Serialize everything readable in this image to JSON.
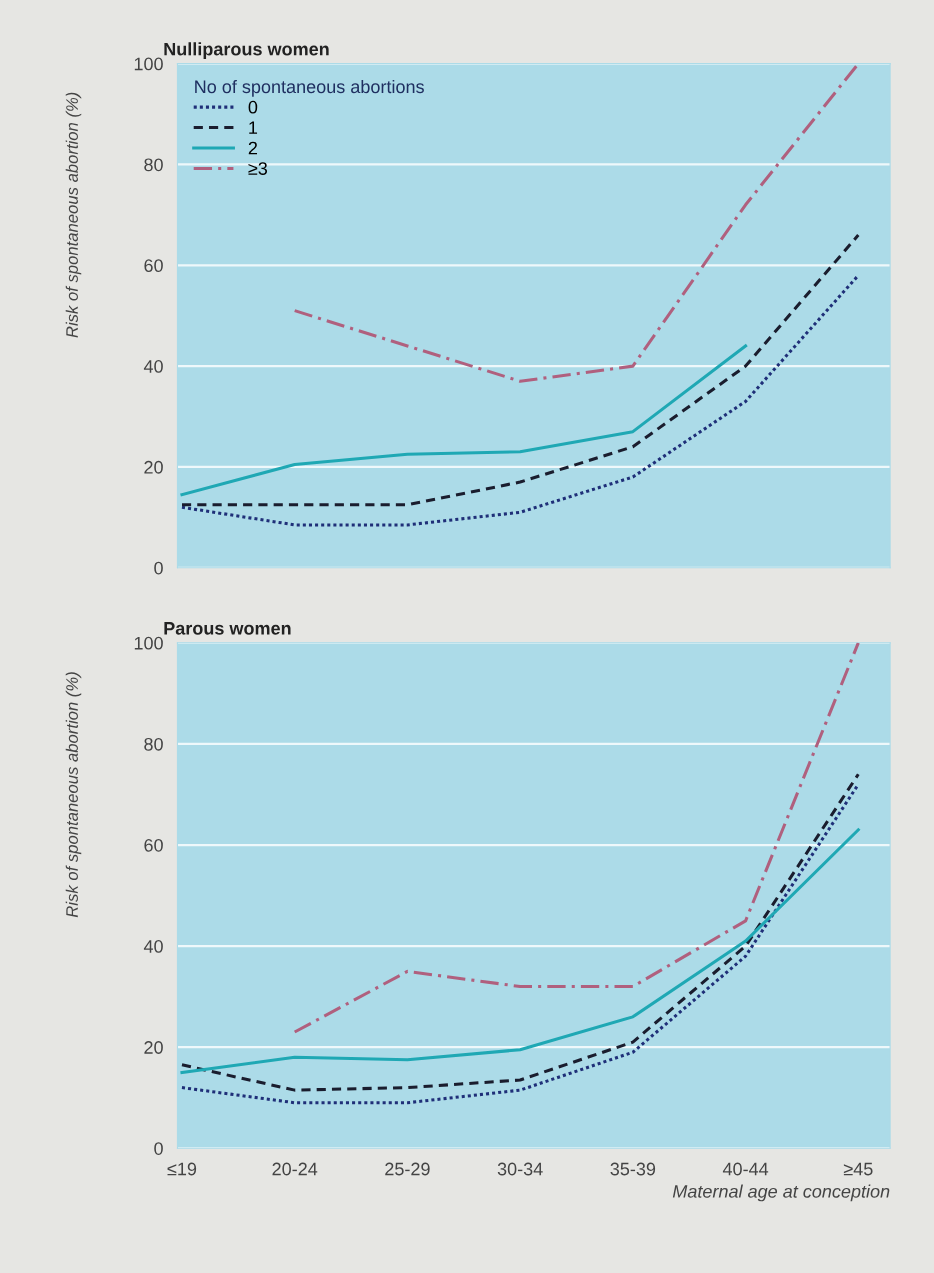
{
  "chart_data": [
    {
      "type": "line",
      "title": "Nulliparous women",
      "ylabel": "Risk of spontaneous abortion (%)",
      "legend_title": "No of spontaneous abortions",
      "legend": "top left",
      "grid": "y",
      "tick_labels": "y",
      "categories": [
        null,
        null,
        null,
        null,
        null,
        null,
        null
      ],
      "ylim": [
        0,
        100
      ],
      "yticks": [
        0,
        20,
        40,
        60,
        80,
        100
      ],
      "series": [
        {
          "name": "0",
          "color": "#1f2f78",
          "line_style": "dotted",
          "values": [
            12,
            8.5,
            8.5,
            11,
            18,
            33,
            58
          ]
        },
        {
          "name": "1",
          "color": "#1a1d2e",
          "line_style": "dashed",
          "values": [
            12.5,
            12.5,
            12.5,
            17,
            24,
            40,
            66
          ]
        },
        {
          "name": "2",
          "color": "#1fa8b4",
          "line_style": "solid",
          "values": [
            14.5,
            20.5,
            22.5,
            23,
            27,
            44,
            null
          ]
        },
        {
          "name": "≥3",
          "color": "#b0607e",
          "line_style": "dashdot",
          "values": [
            null,
            51,
            44,
            37,
            40,
            72,
            100
          ]
        }
      ]
    },
    {
      "type": "line",
      "title": "Parous women",
      "ylabel": "Risk of spontaneous abortion (%)",
      "xlabel": "Maternal age at conception",
      "grid": "y",
      "categories": [
        "≤19",
        "20-24",
        "25-29",
        "30-34",
        "35-39",
        "40-44",
        "≥45"
      ],
      "ylim": [
        0,
        100
      ],
      "yticks": [
        0,
        20,
        40,
        60,
        80,
        100
      ],
      "series": [
        {
          "color": "#1f2f78",
          "line_style": "dotted",
          "values": [
            12,
            9,
            9,
            11.5,
            19,
            38,
            72
          ]
        },
        {
          "color": "#1a1d2e",
          "line_style": "dashed",
          "values": [
            16.5,
            11.5,
            12,
            13.5,
            21,
            40,
            74
          ]
        },
        {
          "color": "#1fa8b4",
          "line_style": "solid",
          "values": [
            15,
            18,
            17.5,
            19.5,
            26,
            41,
            63
          ]
        },
        {
          "color": "#b0607e",
          "line_style": "dashdot",
          "values": [
            null,
            23,
            35,
            32,
            32,
            45,
            100
          ]
        }
      ]
    }
  ]
}
